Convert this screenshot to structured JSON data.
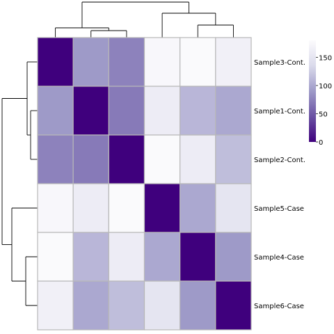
{
  "chart_data": {
    "type": "heatmap",
    "title": "",
    "rows": [
      "Sample3-Cont.",
      "Sample1-Cont.",
      "Sample2-Cont.",
      "Sample5-Case",
      "Sample4-Case",
      "Sample6-Case"
    ],
    "values": [
      [
        0,
        90,
        75,
        175,
        178,
        165
      ],
      [
        90,
        0,
        70,
        160,
        110,
        100
      ],
      [
        75,
        70,
        0,
        178,
        160,
        115
      ],
      [
        175,
        160,
        178,
        0,
        100,
        150
      ],
      [
        178,
        110,
        160,
        100,
        0,
        90
      ],
      [
        165,
        100,
        115,
        150,
        90,
        0
      ]
    ],
    "colorbar": {
      "min": 0,
      "max": 180,
      "ticks": [
        0,
        50,
        100,
        150
      ],
      "tick_labels": [
        "0",
        "50",
        "100",
        "150"
      ],
      "colors": [
        "#3f007d",
        "#6a51a3",
        "#9e9ac8",
        "#dadaeb",
        "#fcfbfd"
      ]
    },
    "dendrogram": {
      "row_top_group": [
        "Sample3-Cont.",
        "Sample1-Cont.",
        "Sample2-Cont."
      ],
      "row_bottom_group": [
        "Sample5-Case",
        "Sample4-Case",
        "Sample6-Case"
      ],
      "col_left_group": [
        "Sample3-Cont.",
        "Sample1-Cont.",
        "Sample2-Cont."
      ],
      "col_right_group": [
        "Sample5-Case",
        "Sample4-Case",
        "Sample6-Case"
      ]
    }
  }
}
